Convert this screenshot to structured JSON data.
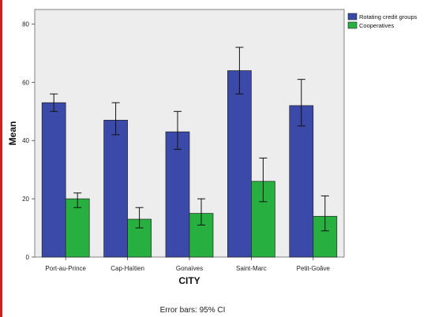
{
  "chart_data": {
    "type": "bar",
    "categories": [
      "Port-au-Prince",
      "Cap-Haïtien",
      "Gonaïves",
      "Saint-Marc",
      "Petit-Goâve"
    ],
    "series": [
      {
        "name": "Rotating credit groups",
        "color": "#3b4aa8",
        "values": [
          53,
          47,
          43,
          64,
          52
        ],
        "ci_low": [
          50,
          42,
          37,
          56,
          45
        ],
        "ci_high": [
          56,
          53,
          50,
          72,
          61
        ]
      },
      {
        "name": "Cooperatives",
        "color": "#27b040",
        "values": [
          20,
          13,
          15,
          26,
          14
        ],
        "ci_low": [
          17,
          10,
          11,
          19,
          9
        ],
        "ci_high": [
          22,
          17,
          20,
          34,
          21
        ]
      }
    ],
    "xlabel": "CITY",
    "ylabel": "Mean",
    "ylim": [
      0,
      85
    ],
    "yticks": [
      "0",
      "20",
      "40",
      "60",
      "80"
    ],
    "legend_position": "top-right",
    "grid": false,
    "footnote": "Error bars: 95% CI"
  }
}
